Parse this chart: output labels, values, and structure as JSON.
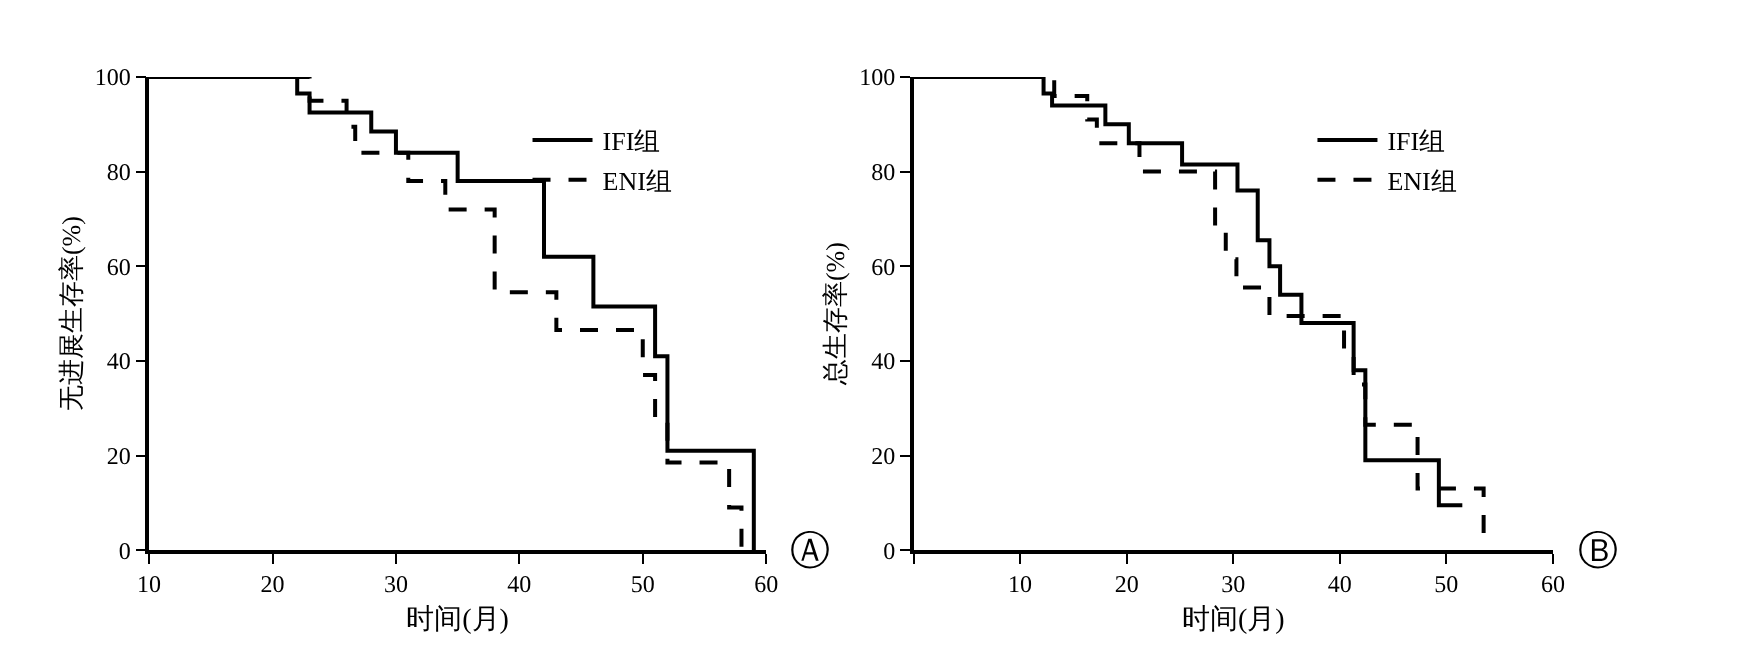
{
  "chart_data": [
    {
      "type": "step",
      "xlabel": "时间(月)",
      "ylabel": "无进展生存率(%)",
      "xlim": [
        10,
        60
      ],
      "xticks": [
        10,
        20,
        30,
        40,
        50,
        60
      ],
      "ylim": [
        0,
        100
      ],
      "yticks": [
        0,
        20,
        40,
        60,
        80,
        100
      ],
      "legend": "top right",
      "annotations": [
        "Ⓐ"
      ],
      "series": [
        {
          "name": "IFI组",
          "color": "#000000",
          "line_style": "solid",
          "x": [
            10,
            22,
            23,
            28,
            30,
            35,
            42,
            46,
            51,
            52,
            59
          ],
          "values": [
            100,
            96.5,
            92.5,
            88.5,
            84,
            78,
            62,
            51.5,
            41,
            21,
            0
          ]
        },
        {
          "name": "ENI组",
          "color": "#000000",
          "line_style": "dashed",
          "x": [
            10,
            23,
            26,
            26.7,
            31,
            34,
            38,
            43,
            50,
            51,
            52,
            57,
            58
          ],
          "values": [
            100,
            95,
            89.5,
            84,
            78,
            72,
            54.5,
            46.5,
            37,
            28,
            18.5,
            9,
            0
          ]
        }
      ]
    },
    {
      "type": "step",
      "xlabel": "时间(月)",
      "ylabel": "总生存率(%)",
      "xlim": [
        0,
        60
      ],
      "xticks": [
        {
          "value": 0,
          "label": null
        },
        10,
        20,
        30,
        40,
        50,
        60
      ],
      "ylim": [
        0,
        100
      ],
      "yticks": [
        0,
        20,
        40,
        60,
        80,
        100
      ],
      "legend": "top right",
      "annotations": [
        "Ⓑ"
      ],
      "series": [
        {
          "name": "IFI组",
          "color": "#000000",
          "line_style": "solid",
          "x": [
            0,
            12.2,
            13,
            18,
            20.2,
            25.2,
            30.4,
            32.3,
            33.4,
            34.4,
            36.4,
            41.3,
            42.4,
            49.3,
            51.5
          ],
          "values": [
            100,
            96.5,
            94,
            90,
            86,
            81.5,
            76,
            65.5,
            60,
            54,
            48,
            38,
            19,
            9.5,
            9.5
          ]
        },
        {
          "name": "ENI组",
          "color": "#000000",
          "line_style": "dashed",
          "x": [
            0,
            13.2,
            16.3,
            17.2,
            21.2,
            28.3,
            29.3,
            30.3,
            33.4,
            40.4,
            41.3,
            42.4,
            47.3,
            53.5
          ],
          "values": [
            100,
            96,
            91,
            86,
            80,
            67.5,
            61.5,
            55.5,
            49.5,
            41.5,
            35,
            26.5,
            13,
            0
          ]
        }
      ]
    }
  ]
}
